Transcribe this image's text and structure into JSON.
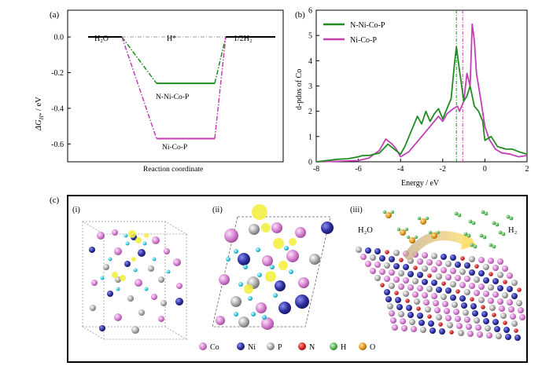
{
  "chart_data": [
    {
      "panel": "(a)",
      "type": "line",
      "ylabel_main": "ΔG",
      "ylabel_sub": "H*",
      "ylabel_unit": " / eV",
      "xlabel": "Reaction coordinate",
      "ylim": [
        -0.7,
        0.15
      ],
      "yticks": [
        "0.0",
        "-0.2",
        "-0.4",
        "-0.6"
      ],
      "ytick_values": [
        0.0,
        -0.2,
        -0.4,
        -0.6
      ],
      "states": [
        "H₂O",
        "H*",
        "1/2H₂"
      ],
      "series": [
        {
          "name": "N-Ni-Co-P",
          "values": [
            0.0,
            -0.26,
            0.0
          ],
          "color": "#228b22"
        },
        {
          "name": "Ni-Co-P",
          "values": [
            0.0,
            -0.57,
            0.0
          ],
          "color": "#c23fb5"
        }
      ]
    },
    {
      "panel": "(b)",
      "type": "line",
      "xlabel": "Energy / eV",
      "ylabel": "d-pdos of Co",
      "xlim": [
        -8,
        2
      ],
      "ylim": [
        0,
        6
      ],
      "xticks": [
        "-8",
        "-6",
        "-4",
        "-2",
        "0",
        "2"
      ],
      "xtick_values": [
        -8,
        -6,
        -4,
        -2,
        0,
        2
      ],
      "yticks": [
        "0",
        "1",
        "2",
        "3",
        "4",
        "5",
        "6"
      ],
      "ytick_values": [
        0,
        1,
        2,
        3,
        4,
        5,
        6
      ],
      "legend_position": "top-left",
      "vlines": [
        {
          "x": -1.35,
          "color": "#228b22"
        },
        {
          "x": -1.05,
          "color": "#c23fb5"
        }
      ],
      "series": [
        {
          "name": "N-Ni-Co-P",
          "color": "#228b22",
          "x": [
            -8.0,
            -7.5,
            -7.0,
            -6.5,
            -6.0,
            -5.8,
            -5.5,
            -5.0,
            -4.6,
            -4.3,
            -4.0,
            -3.8,
            -3.5,
            -3.2,
            -3.0,
            -2.8,
            -2.6,
            -2.4,
            -2.2,
            -2.0,
            -1.8,
            -1.6,
            -1.45,
            -1.35,
            -1.2,
            -1.0,
            -0.85,
            -0.7,
            -0.5,
            -0.3,
            -0.1,
            0.0,
            0.3,
            0.6,
            1.0,
            1.3,
            1.6,
            2.0
          ],
          "y": [
            0.0,
            0.05,
            0.1,
            0.12,
            0.2,
            0.25,
            0.25,
            0.35,
            0.7,
            0.5,
            0.3,
            0.6,
            1.2,
            1.8,
            1.5,
            2.0,
            1.6,
            1.9,
            2.1,
            1.7,
            2.1,
            2.5,
            3.8,
            4.55,
            3.6,
            2.4,
            2.6,
            3.0,
            2.2,
            2.0,
            1.6,
            0.85,
            1.0,
            0.6,
            0.5,
            0.5,
            0.4,
            0.3
          ]
        },
        {
          "name": "Ni-Co-P",
          "color": "#c23fb5",
          "x": [
            -8.0,
            -7.0,
            -6.0,
            -5.5,
            -5.0,
            -4.7,
            -4.4,
            -4.2,
            -4.0,
            -3.6,
            -3.2,
            -3.0,
            -2.8,
            -2.5,
            -2.2,
            -2.0,
            -1.8,
            -1.5,
            -1.3,
            -1.2,
            -1.0,
            -0.85,
            -0.7,
            -0.6,
            -0.5,
            -0.4,
            -0.2,
            0.0,
            0.2,
            0.5,
            0.8,
            1.2,
            1.6,
            2.0
          ],
          "y": [
            0.0,
            0.02,
            0.05,
            0.15,
            0.45,
            0.9,
            0.7,
            0.5,
            0.2,
            0.4,
            0.8,
            1.0,
            1.2,
            1.5,
            1.8,
            1.6,
            1.9,
            2.1,
            2.2,
            2.0,
            2.4,
            3.5,
            3.0,
            5.45,
            4.8,
            3.5,
            2.5,
            1.4,
            0.9,
            0.5,
            0.35,
            0.3,
            0.2,
            0.25
          ]
        }
      ]
    }
  ],
  "panel_c": {
    "label": "(c)",
    "subpanels": [
      "(i)",
      "(ii)",
      "(iii)"
    ],
    "reactant_label": "H₂O",
    "product_label": "H₂",
    "legend": [
      {
        "name": "Co",
        "color": "#d47fd0"
      },
      {
        "name": "Ni",
        "color": "#2c2f9c"
      },
      {
        "name": "P",
        "color": "#a9a9a9"
      },
      {
        "name": "N",
        "color": "#d42626"
      },
      {
        "name": "H",
        "color": "#5cb85c"
      },
      {
        "name": "O",
        "color": "#e69a1e"
      }
    ]
  }
}
